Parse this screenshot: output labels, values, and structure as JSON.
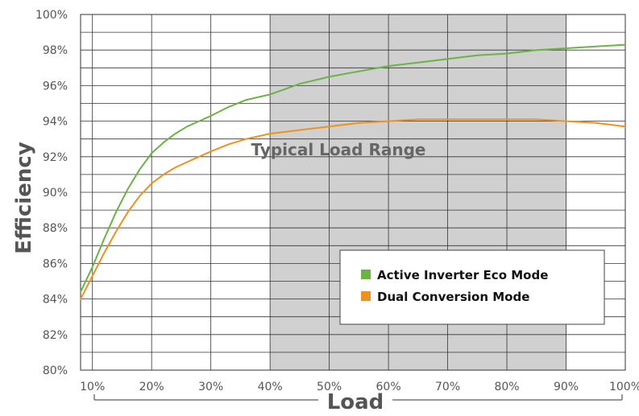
{
  "chart_data": {
    "type": "line",
    "xlabel": "Load",
    "ylabel": "Efficiency",
    "xlim": [
      8,
      100
    ],
    "ylim": [
      80,
      100
    ],
    "x_ticks": [
      10,
      20,
      30,
      40,
      50,
      60,
      70,
      80,
      90,
      100
    ],
    "y_ticks": [
      80,
      82,
      84,
      86,
      88,
      90,
      92,
      94,
      96,
      98,
      100
    ],
    "x_tick_labels": [
      "10%",
      "20%",
      "30%",
      "40%",
      "50%",
      "60%",
      "70%",
      "80%",
      "90%",
      "100%"
    ],
    "y_tick_labels": [
      "80%",
      "82%",
      "84%",
      "86%",
      "88%",
      "90%",
      "92%",
      "94%",
      "96%",
      "98%",
      "100%"
    ],
    "grid": true,
    "highlight_range": {
      "x": [
        40,
        90
      ],
      "label": "Typical Load Range",
      "color": "#d0d0d0"
    },
    "legend_position": "bottom-right",
    "series": [
      {
        "name": "Active Inverter Eco Mode",
        "color": "#6ab344",
        "x": [
          8,
          10,
          12,
          14,
          16,
          18,
          20,
          22,
          24,
          26,
          28,
          30,
          33,
          36,
          40,
          45,
          50,
          55,
          60,
          65,
          70,
          75,
          80,
          85,
          90,
          95,
          100
        ],
        "y": [
          84.4,
          85.8,
          87.4,
          88.9,
          90.2,
          91.3,
          92.2,
          92.8,
          93.3,
          93.7,
          94.0,
          94.3,
          94.8,
          95.2,
          95.5,
          96.1,
          96.5,
          96.8,
          97.1,
          97.3,
          97.5,
          97.7,
          97.8,
          98.0,
          98.1,
          98.2,
          98.3
        ]
      },
      {
        "name": "Dual Conversion Mode",
        "color": "#f0901e",
        "x": [
          8,
          10,
          12,
          14,
          16,
          18,
          20,
          22,
          24,
          26,
          28,
          30,
          33,
          36,
          40,
          45,
          50,
          55,
          60,
          65,
          70,
          75,
          80,
          85,
          90,
          95,
          100
        ],
        "y": [
          84.0,
          85.3,
          86.6,
          87.8,
          88.9,
          89.8,
          90.5,
          91.0,
          91.4,
          91.7,
          92.0,
          92.3,
          92.7,
          93.0,
          93.3,
          93.5,
          93.7,
          93.9,
          94.0,
          94.1,
          94.1,
          94.1,
          94.1,
          94.1,
          94.0,
          93.9,
          93.7
        ]
      }
    ]
  }
}
